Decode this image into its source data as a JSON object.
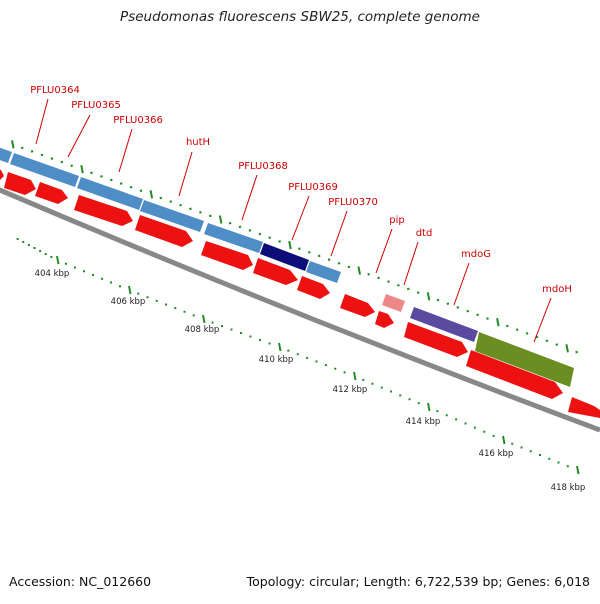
{
  "map": {
    "title": "Pseudomonas fluorescens SBW25, complete genome",
    "accession_text": "Accession: NC_012660",
    "summary_text": "Topology: circular; Length: 6,722,539 bp; Genes: 6,018",
    "colors": {
      "gene_arrow": "#ee1111",
      "gene_arrow_light": "#ee8888",
      "cds_steelblue": "#4f8dc6",
      "cds_navy": "#0d0d7a",
      "cds_purple": "#5a4aa0",
      "cds_olive": "#6b8e23",
      "label_red": "#cc0000",
      "tick_green": "#228b22",
      "backbone": "#888888"
    },
    "genes": [
      {
        "name": "PFLU0364"
      },
      {
        "name": "PFLU0365"
      },
      {
        "name": "PFLU0366"
      },
      {
        "name": "hutH"
      },
      {
        "name": "PFLU0368"
      },
      {
        "name": "PFLU0369"
      },
      {
        "name": "PFLU0370"
      },
      {
        "name": "pip"
      },
      {
        "name": "dtd"
      },
      {
        "name": "mdoG"
      },
      {
        "name": "mdoH"
      }
    ],
    "ticks": [
      {
        "label": "404 kbp"
      },
      {
        "label": "406 kbp"
      },
      {
        "label": "408 kbp"
      },
      {
        "label": "410 kbp"
      },
      {
        "label": "412 kbp"
      },
      {
        "label": "414 kbp"
      },
      {
        "label": "416 kbp"
      },
      {
        "label": "418 kbp"
      }
    ]
  }
}
